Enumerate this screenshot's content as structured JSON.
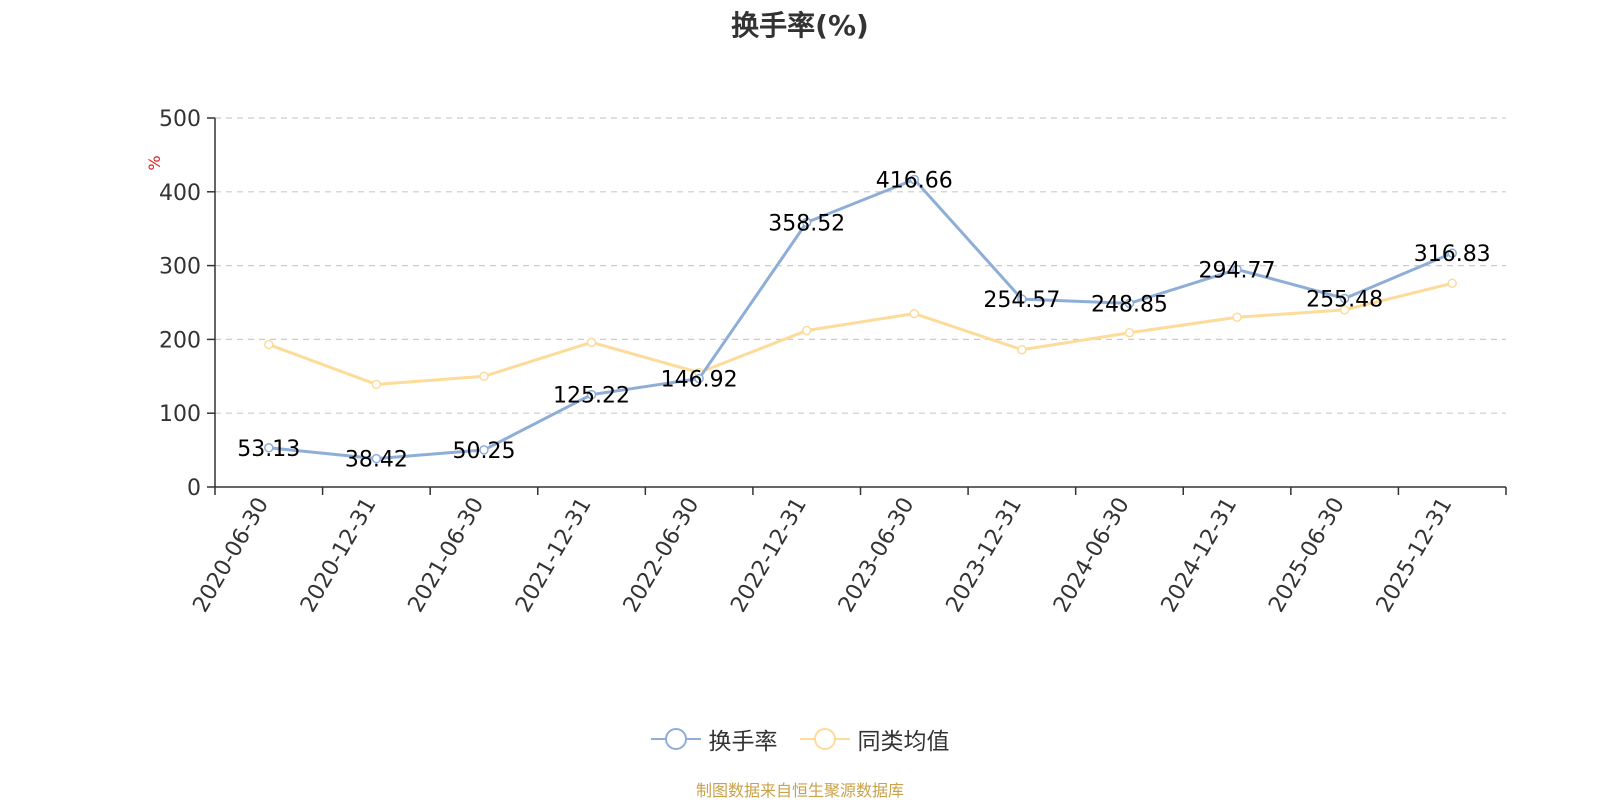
{
  "chart_data": {
    "type": "line",
    "title": "换手率(%)",
    "ylabel": "%",
    "xlabel": "",
    "ylim": [
      0,
      500
    ],
    "yticks": [
      0,
      100,
      200,
      300,
      400,
      500
    ],
    "grid": true,
    "legend_position": "bottom",
    "categories": [
      "2020-06-30",
      "2020-12-31",
      "2021-06-30",
      "2021-12-31",
      "2022-06-30",
      "2022-12-31",
      "2023-06-30",
      "2023-12-31",
      "2024-06-30",
      "2024-12-31",
      "2025-06-30",
      "2025-12-31"
    ],
    "series": [
      {
        "name": "换手率",
        "color": "#8eaed8",
        "show_labels": true,
        "values": [
          53.13,
          38.42,
          50.25,
          125.22,
          146.92,
          358.52,
          416.66,
          254.57,
          248.85,
          294.77,
          255.48,
          316.83
        ]
      },
      {
        "name": "同类均值",
        "color": "#fddb9a",
        "show_labels": false,
        "values": [
          193,
          139,
          150,
          196,
          155,
          212,
          235,
          186,
          209,
          230,
          240,
          276
        ]
      }
    ],
    "source": "制图数据来自恒生聚源数据库"
  }
}
